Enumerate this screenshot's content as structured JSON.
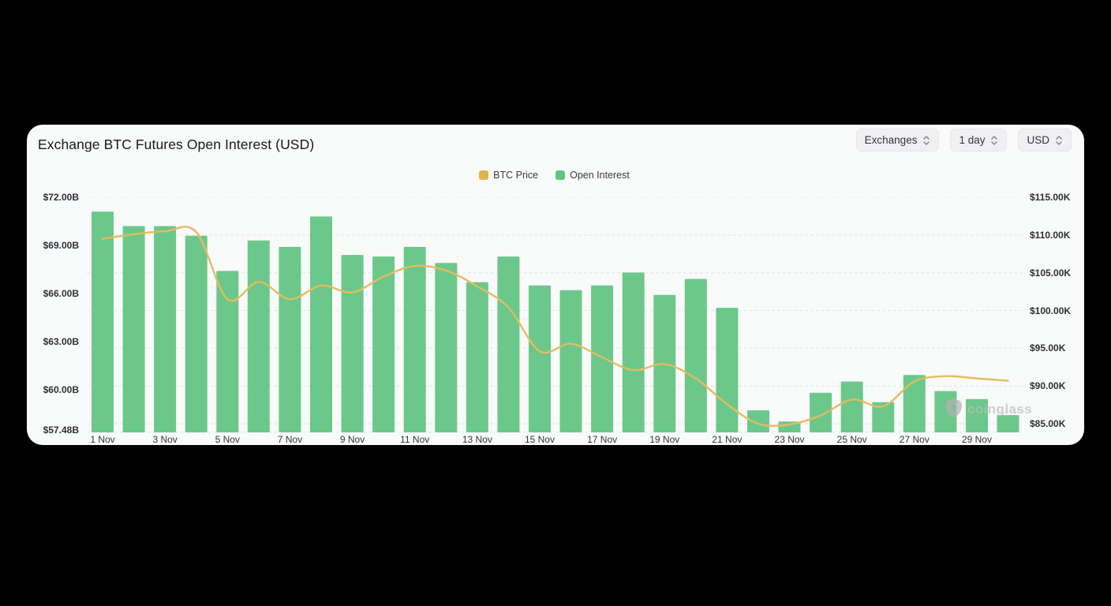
{
  "header": {
    "title": "Exchange BTC Futures Open Interest (USD)",
    "controls": [
      {
        "label": "Exchanges",
        "icon": "updown-chevron-icon"
      },
      {
        "label": "1 day",
        "icon": "updown-chevron-icon"
      },
      {
        "label": "USD",
        "icon": "updown-chevron-icon"
      }
    ]
  },
  "legend": {
    "items": [
      {
        "label": "BTC Price",
        "color": "#E0B54E"
      },
      {
        "label": "Open Interest",
        "color": "#5FC77F"
      }
    ]
  },
  "watermark": {
    "text": "coinglass",
    "icon": "coinglass-logo-icon"
  },
  "colors": {
    "bar_green": "#6BC88A",
    "line_yellow": "#E4BC5F",
    "grid": "#e4e4e4",
    "card_bg": "#f9fafa"
  },
  "chart_data": {
    "type": "bar",
    "subtype": "bar+line combo",
    "title": "Exchange BTC Futures Open Interest (USD)",
    "grid": "horizontal dashed",
    "legend_position": "top-center",
    "categories": [
      "1 Nov",
      "2 Nov",
      "3 Nov",
      "4 Nov",
      "5 Nov",
      "6 Nov",
      "7 Nov",
      "8 Nov",
      "9 Nov",
      "10 Nov",
      "11 Nov",
      "12 Nov",
      "13 Nov",
      "14 Nov",
      "15 Nov",
      "16 Nov",
      "17 Nov",
      "18 Nov",
      "19 Nov",
      "20 Nov",
      "21 Nov",
      "22 Nov",
      "23 Nov",
      "24 Nov",
      "25 Nov",
      "26 Nov",
      "27 Nov",
      "28 Nov",
      "29 Nov",
      "30 Nov"
    ],
    "series": [
      {
        "name": "Open Interest",
        "type": "bar",
        "axis": "left",
        "unit": "billion USD",
        "values": [
          71.1,
          70.2,
          70.2,
          69.6,
          67.4,
          69.3,
          68.9,
          70.8,
          68.4,
          68.3,
          68.9,
          67.9,
          66.7,
          68.3,
          66.5,
          66.2,
          66.5,
          67.3,
          65.9,
          66.9,
          65.1,
          58.7,
          58.0,
          59.8,
          60.5,
          59.2,
          60.9,
          59.9,
          59.4,
          58.4
        ]
      },
      {
        "name": "BTC Price",
        "type": "line",
        "axis": "right",
        "unit": "thousand USD",
        "values": [
          109.5,
          110.1,
          110.5,
          110.4,
          101.5,
          103.8,
          101.5,
          103.3,
          102.4,
          104.5,
          105.9,
          105.3,
          103.2,
          100.4,
          94.6,
          95.6,
          93.8,
          92.1,
          92.9,
          91.0,
          87.6,
          85.0,
          84.9,
          86.1,
          88.2,
          87.3,
          90.6,
          91.3,
          91.0,
          90.7
        ]
      }
    ],
    "left_axis": {
      "tick_labels": [
        "$72.00B",
        "$69.00B",
        "$66.00B",
        "$63.00B",
        "$60.00B",
        "$57.48B"
      ],
      "tick_values": [
        72,
        69,
        66,
        63,
        60,
        57.48
      ],
      "min": 57.48,
      "max": 72
    },
    "right_axis": {
      "tick_labels": [
        "$115.00K",
        "$110.00K",
        "$105.00K",
        "$100.00K",
        "$95.00K",
        "$90.00K",
        "$85.00K"
      ],
      "tick_values": [
        115,
        110,
        105,
        100,
        95,
        90,
        85
      ],
      "min": 85,
      "max": 115
    },
    "x_axis": {
      "tick_labels": [
        "1 Nov",
        "3 Nov",
        "5 Nov",
        "7 Nov",
        "9 Nov",
        "11 Nov",
        "13 Nov",
        "15 Nov",
        "17 Nov",
        "19 Nov",
        "21 Nov",
        "23 Nov",
        "25 Nov",
        "27 Nov",
        "29 Nov"
      ],
      "tick_days": [
        1,
        3,
        5,
        7,
        9,
        11,
        13,
        15,
        17,
        19,
        21,
        23,
        25,
        27,
        29
      ]
    }
  }
}
